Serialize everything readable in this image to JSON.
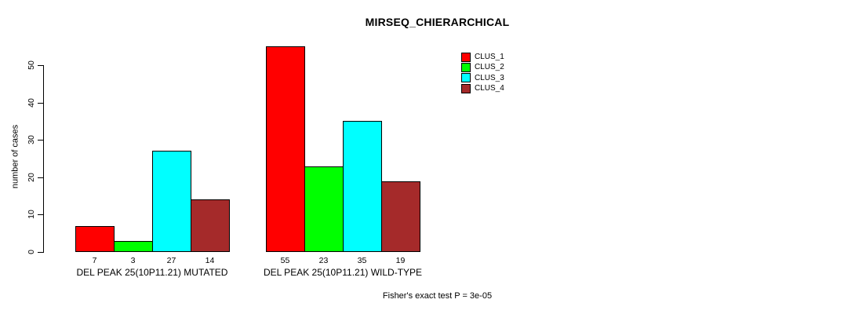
{
  "chart_data": {
    "type": "bar",
    "title": "MIRSEQ_CHIERARCHICAL",
    "ylabel": "number of cases",
    "xlabel": "",
    "ylim": [
      0,
      55
    ],
    "yticks": [
      0,
      10,
      20,
      30,
      40,
      50
    ],
    "grid": false,
    "legend_position": "top-right",
    "legend": [
      {
        "name": "CLUS_1",
        "color": "#FF0000"
      },
      {
        "name": "CLUS_2",
        "color": "#00FF00"
      },
      {
        "name": "CLUS_3",
        "color": "#00FFFF"
      },
      {
        "name": "CLUS_4",
        "color": "#A52A2A"
      }
    ],
    "categories": [
      "DEL PEAK 25(10P11.21) MUTATED",
      "DEL PEAK 25(10P11.21) WILD-TYPE"
    ],
    "series": [
      {
        "name": "CLUS_1",
        "values": [
          7,
          55
        ]
      },
      {
        "name": "CLUS_2",
        "values": [
          3,
          23
        ]
      },
      {
        "name": "CLUS_3",
        "values": [
          27,
          35
        ]
      },
      {
        "name": "CLUS_4",
        "values": [
          14,
          19
        ]
      }
    ],
    "groups": [
      {
        "label": "DEL PEAK 25(10P11.21) MUTATED",
        "values": [
          7,
          3,
          27,
          14
        ]
      },
      {
        "label": "DEL PEAK 25(10P11.21) WILD-TYPE",
        "values": [
          55,
          23,
          35,
          19
        ]
      }
    ],
    "bar_value_labels_shown": true,
    "annotation": "Fisher's exact test P = 3e-05"
  },
  "colors": {
    "background": "#FFFFFF",
    "axis": "#000000",
    "text": "#000000"
  }
}
